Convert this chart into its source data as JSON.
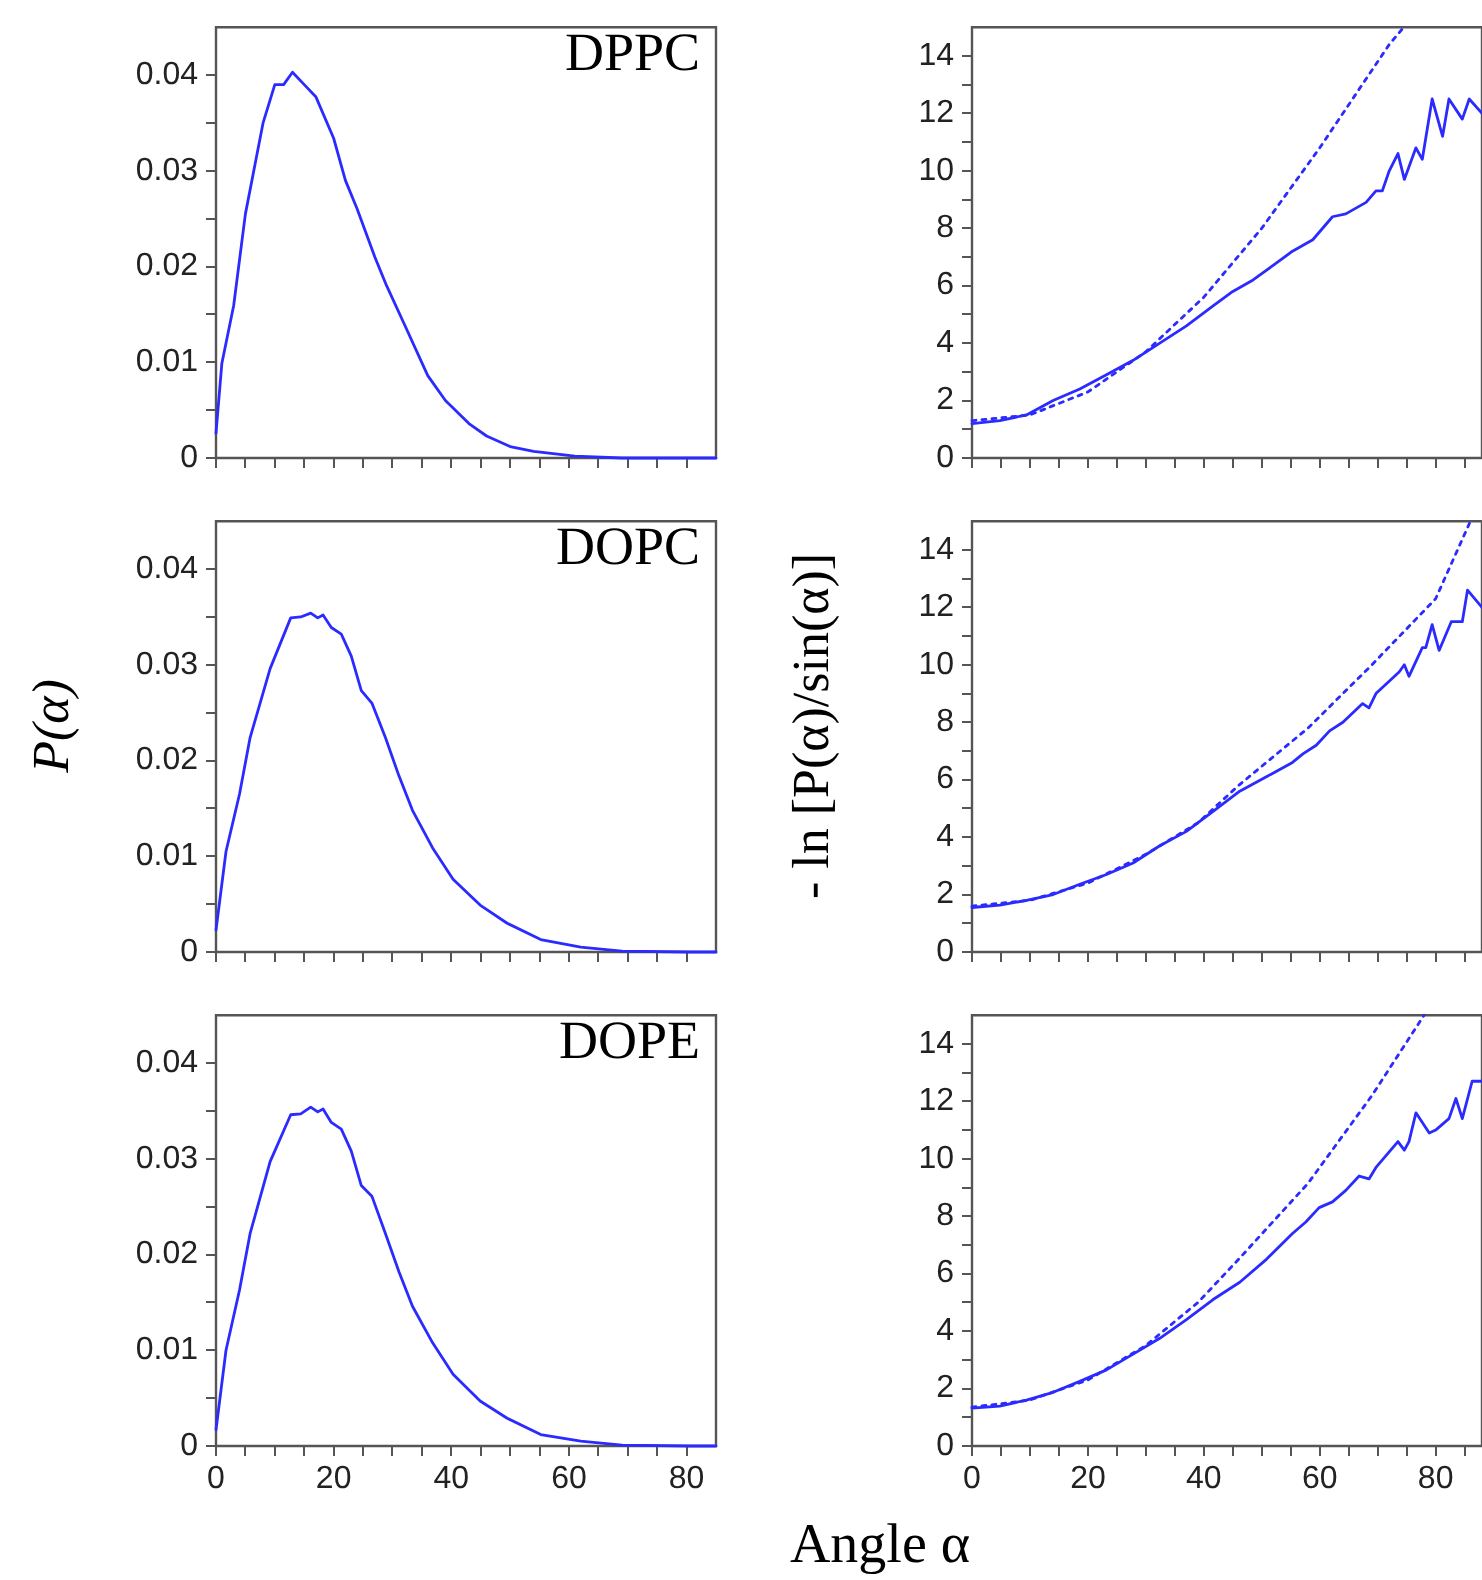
{
  "chart_data": [
    {
      "type": "line",
      "annotations": [
        "DPPC"
      ],
      "xlim": [
        0,
        85
      ],
      "ylim": [
        0,
        0.045
      ],
      "tick_labels": "y",
      "grid": false,
      "legend": false,
      "marker": "none",
      "xticks": [
        0,
        {
          "value": 5,
          "label": null
        },
        {
          "value": 10,
          "label": null
        },
        {
          "value": 15,
          "label": null
        },
        {
          "value": 20,
          "label": null
        },
        {
          "value": 25,
          "label": null
        },
        {
          "value": 30,
          "label": null
        },
        {
          "value": 35,
          "label": null
        },
        {
          "value": 40,
          "label": null
        },
        {
          "value": 45,
          "label": null
        },
        {
          "value": 50,
          "label": null
        },
        {
          "value": 55,
          "label": null
        },
        {
          "value": 60,
          "label": null
        },
        {
          "value": 65,
          "label": null
        },
        {
          "value": 70,
          "label": null
        },
        {
          "value": 75,
          "label": null
        },
        {
          "value": 80,
          "label": null
        }
      ],
      "yticks": [
        0,
        {
          "value": 0.005,
          "label": null
        },
        0.01,
        {
          "value": 0.015,
          "label": null
        },
        0.02,
        {
          "value": 0.025,
          "label": null
        },
        0.03,
        {
          "value": 0.035,
          "label": null
        },
        0.04
      ],
      "series": [
        {
          "color": "#2b2bff",
          "line_style": "solid",
          "x": [
            0,
            1,
            3,
            5,
            8,
            10,
            11.5,
            13,
            15,
            17,
            20,
            22,
            24,
            27,
            29,
            32,
            36,
            39,
            43,
            46,
            50,
            54,
            61,
            69,
            80,
            85
          ],
          "values": [
            0.0026,
            0.0099,
            0.0159,
            0.0255,
            0.035,
            0.039,
            0.039,
            0.0403,
            0.039,
            0.0377,
            0.0334,
            0.029,
            0.026,
            0.021,
            0.018,
            0.014,
            0.0086,
            0.006,
            0.0036,
            0.0023,
            0.0012,
            0.0007,
            0.0002,
            0,
            0,
            0
          ]
        }
      ]
    },
    {
      "type": "line",
      "xlim": [
        0,
        88
      ],
      "ylim": [
        0,
        15
      ],
      "tick_labels": "y",
      "grid": false,
      "legend": false,
      "marker": "none",
      "xticks": [
        0,
        {
          "value": 5,
          "label": null
        },
        20,
        {
          "value": 10,
          "label": null
        },
        {
          "value": 15,
          "label": null
        },
        {
          "value": 25,
          "label": null
        },
        {
          "value": 30,
          "label": null
        },
        {
          "value": 35,
          "label": null
        },
        40,
        {
          "value": 45,
          "label": null
        },
        {
          "value": 50,
          "label": null
        },
        {
          "value": 55,
          "label": null
        },
        60,
        {
          "value": 65,
          "label": null
        },
        {
          "value": 70,
          "label": null
        },
        {
          "value": 75,
          "label": null
        },
        80,
        {
          "value": 85,
          "label": null
        }
      ],
      "yticks": [
        0,
        {
          "value": 1,
          "label": null
        },
        2,
        {
          "value": 3,
          "label": null
        },
        4,
        {
          "value": 5,
          "label": null
        },
        6,
        {
          "value": 7,
          "label": null
        },
        8,
        {
          "value": 9,
          "label": null
        },
        10,
        {
          "value": 11,
          "label": null
        },
        12,
        {
          "value": 13,
          "label": null
        },
        14
      ],
      "series": [
        {
          "color": "#2b2bff",
          "line_style": "solid",
          "x": [
            0,
            4.8,
            9.4,
            14,
            18.6,
            23.2,
            27.8,
            32.4,
            37,
            41.6,
            45,
            48.5,
            51.9,
            55.3,
            58.8,
            60.5,
            62.2,
            64.5,
            68,
            69.7,
            70.8,
            72,
            73.5,
            74.6,
            76.6,
            77.7,
            79.4,
            81.2,
            82.3,
            84.6,
            85.8,
            88
          ],
          "values": [
            1.2,
            1.3,
            1.5,
            2.0,
            2.4,
            2.9,
            3.4,
            4.0,
            4.6,
            5.3,
            5.8,
            6.2,
            6.7,
            7.2,
            7.6,
            8.0,
            8.4,
            8.5,
            8.9,
            9.3,
            9.3,
            10.0,
            10.6,
            9.7,
            10.8,
            10.4,
            12.5,
            11.2,
            12.5,
            11.8,
            12.5,
            12.0
          ]
        },
        {
          "type": "line",
          "color": "#2b2bff",
          "line_style": "dotted",
          "x": [
            0,
            10,
            20,
            30,
            40,
            50,
            60,
            66,
            72,
            74.5
          ],
          "values": [
            1.3,
            1.5,
            2.3,
            3.7,
            5.6,
            8.0,
            10.8,
            12.6,
            14.4,
            15
          ]
        }
      ]
    },
    {
      "type": "line",
      "annotations": [
        "DOPC"
      ],
      "ylabel": "P(α)",
      "xlim": [
        0,
        85
      ],
      "ylim": [
        0,
        0.045
      ],
      "tick_labels": "y",
      "grid": false,
      "legend": false,
      "marker": "none",
      "xticks": [
        0,
        {
          "value": 5,
          "label": null
        },
        {
          "value": 10,
          "label": null
        },
        {
          "value": 15,
          "label": null
        },
        {
          "value": 20,
          "label": null
        },
        {
          "value": 25,
          "label": null
        },
        {
          "value": 30,
          "label": null
        },
        {
          "value": 35,
          "label": null
        },
        {
          "value": 40,
          "label": null
        },
        {
          "value": 45,
          "label": null
        },
        {
          "value": 50,
          "label": null
        },
        {
          "value": 55,
          "label": null
        },
        {
          "value": 60,
          "label": null
        },
        {
          "value": 65,
          "label": null
        },
        {
          "value": 70,
          "label": null
        },
        {
          "value": 75,
          "label": null
        },
        {
          "value": 80,
          "label": null
        }
      ],
      "yticks": [
        0,
        {
          "value": 0.005,
          "label": null
        },
        0.01,
        {
          "value": 0.015,
          "label": null
        },
        0.02,
        {
          "value": 0.025,
          "label": null
        },
        0.03,
        {
          "value": 0.035,
          "label": null
        },
        0.04
      ],
      "series": [
        {
          "color": "#2b2bff",
          "line_style": "solid",
          "x": [
            0,
            1.7,
            4,
            5.8,
            9.2,
            12.7,
            14.4,
            16.1,
            17.3,
            18.2,
            19.6,
            21.3,
            23,
            24.7,
            26.5,
            28.8,
            31.1,
            33.4,
            36.8,
            40.3,
            44.9,
            49.5,
            55.2,
            62,
            69,
            80.5,
            85
          ],
          "values": [
            0.0023,
            0.0105,
            0.0165,
            0.0224,
            0.0296,
            0.0349,
            0.035,
            0.0354,
            0.0349,
            0.0352,
            0.0339,
            0.0332,
            0.0309,
            0.0273,
            0.026,
            0.0224,
            0.0184,
            0.0148,
            0.0109,
            0.0076,
            0.0049,
            0.003,
            0.0013,
            0.0005,
            0.0001,
            0,
            0
          ]
        }
      ]
    },
    {
      "type": "line",
      "ylabel": "- ln [P(α)/sin(α)]",
      "xlim": [
        0,
        88
      ],
      "ylim": [
        0,
        15
      ],
      "tick_labels": "y",
      "grid": false,
      "legend": false,
      "marker": "none",
      "xticks": [
        0,
        {
          "value": 5,
          "label": null
        },
        20,
        {
          "value": 10,
          "label": null
        },
        {
          "value": 15,
          "label": null
        },
        {
          "value": 25,
          "label": null
        },
        {
          "value": 30,
          "label": null
        },
        {
          "value": 35,
          "label": null
        },
        40,
        {
          "value": 45,
          "label": null
        },
        {
          "value": 50,
          "label": null
        },
        {
          "value": 55,
          "label": null
        },
        60,
        {
          "value": 65,
          "label": null
        },
        {
          "value": 70,
          "label": null
        },
        {
          "value": 75,
          "label": null
        },
        80,
        {
          "value": 85,
          "label": null
        }
      ],
      "yticks": [
        0,
        {
          "value": 1,
          "label": null
        },
        2,
        {
          "value": 3,
          "label": null
        },
        4,
        {
          "value": 5,
          "label": null
        },
        6,
        {
          "value": 7,
          "label": null
        },
        8,
        {
          "value": 9,
          "label": null
        },
        10,
        {
          "value": 11,
          "label": null
        },
        12,
        {
          "value": 13,
          "label": null
        },
        14
      ],
      "series": [
        {
          "color": "#2b2bff",
          "line_style": "solid",
          "x": [
            0,
            4.8,
            9.4,
            14,
            18.6,
            23.2,
            27.8,
            32.4,
            37,
            41.6,
            46.2,
            50.8,
            55.3,
            57.1,
            59.4,
            61.7,
            64,
            67.4,
            68.5,
            69.7,
            73.7,
            74.6,
            75.4,
            77.7,
            78.3,
            79.4,
            80.6,
            82.7,
            84.6,
            85.5,
            88
          ],
          "values": [
            1.55,
            1.63,
            1.8,
            2.0,
            2.36,
            2.7,
            3.1,
            3.7,
            4.2,
            4.9,
            5.6,
            6.1,
            6.6,
            6.9,
            7.2,
            7.7,
            8.0,
            8.65,
            8.5,
            9.0,
            9.75,
            10.0,
            9.6,
            10.6,
            10.6,
            11.4,
            10.5,
            11.5,
            11.5,
            12.6,
            12.0
          ]
        },
        {
          "type": "line",
          "color": "#2b2bff",
          "line_style": "dotted",
          "x": [
            0,
            10,
            20,
            30,
            39,
            46,
            58,
            69,
            80,
            86
          ],
          "values": [
            1.6,
            1.8,
            2.4,
            3.4,
            4.5,
            5.8,
            7.8,
            10,
            12.3,
            15
          ]
        }
      ]
    },
    {
      "type": "line",
      "annotations": [
        "DOPE"
      ],
      "xlim": [
        0,
        85
      ],
      "ylim": [
        0,
        0.045
      ],
      "grid": false,
      "legend": false,
      "marker": "none",
      "xticks": [
        0,
        {
          "value": 5,
          "label": null
        },
        {
          "value": 10,
          "label": null
        },
        {
          "value": 15,
          "label": null
        },
        20,
        {
          "value": 25,
          "label": null
        },
        {
          "value": 30,
          "label": null
        },
        {
          "value": 35,
          "label": null
        },
        40,
        {
          "value": 45,
          "label": null
        },
        {
          "value": 50,
          "label": null
        },
        {
          "value": 55,
          "label": null
        },
        60,
        {
          "value": 65,
          "label": null
        },
        {
          "value": 70,
          "label": null
        },
        {
          "value": 75,
          "label": null
        },
        80
      ],
      "yticks": [
        0,
        {
          "value": 0.005,
          "label": null
        },
        0.01,
        {
          "value": 0.015,
          "label": null
        },
        0.02,
        {
          "value": 0.025,
          "label": null
        },
        0.03,
        {
          "value": 0.035,
          "label": null
        },
        0.04
      ],
      "series": [
        {
          "color": "#2b2bff",
          "line_style": "solid",
          "x": [
            0,
            1.7,
            4,
            5.8,
            9.2,
            12.7,
            14.4,
            16.1,
            17.3,
            18.2,
            19.6,
            21.3,
            23,
            24.7,
            26.5,
            28.8,
            31.1,
            33.4,
            36.8,
            40.3,
            44.9,
            49.5,
            55.2,
            62,
            69,
            80.5,
            85
          ],
          "values": [
            0.0017,
            0.01,
            0.0163,
            0.0222,
            0.0297,
            0.0346,
            0.0347,
            0.0354,
            0.0349,
            0.0352,
            0.0338,
            0.0331,
            0.0308,
            0.0272,
            0.0261,
            0.0222,
            0.0182,
            0.0146,
            0.0108,
            0.0075,
            0.0047,
            0.0029,
            0.0012,
            0.0005,
            0.0001,
            0,
            0
          ]
        }
      ]
    },
    {
      "type": "line",
      "xlabel": "Angle α",
      "xlim": [
        0,
        88
      ],
      "ylim": [
        0,
        15
      ],
      "grid": false,
      "legend": false,
      "marker": "none",
      "xticks": [
        0,
        {
          "value": 5,
          "label": null
        },
        20,
        {
          "value": 10,
          "label": null
        },
        {
          "value": 15,
          "label": null
        },
        {
          "value": 25,
          "label": null
        },
        {
          "value": 30,
          "label": null
        },
        {
          "value": 35,
          "label": null
        },
        40,
        {
          "value": 45,
          "label": null
        },
        {
          "value": 50,
          "label": null
        },
        {
          "value": 55,
          "label": null
        },
        60,
        {
          "value": 65,
          "label": null
        },
        {
          "value": 70,
          "label": null
        },
        {
          "value": 75,
          "label": null
        },
        80,
        {
          "value": 85,
          "label": null
        }
      ],
      "yticks": [
        0,
        {
          "value": 1,
          "label": null
        },
        2,
        {
          "value": 3,
          "label": null
        },
        4,
        {
          "value": 5,
          "label": null
        },
        6,
        {
          "value": 7,
          "label": null
        },
        8,
        {
          "value": 9,
          "label": null
        },
        10,
        {
          "value": 11,
          "label": null
        },
        12,
        {
          "value": 13,
          "label": null
        },
        14
      ],
      "series": [
        {
          "color": "#2b2bff",
          "line_style": "solid",
          "x": [
            0,
            4.8,
            9.4,
            14,
            18.6,
            23.2,
            27.8,
            32.4,
            37,
            41.6,
            46.2,
            50.8,
            55.3,
            57.6,
            59.9,
            62.2,
            64.5,
            66.8,
            68.5,
            69.7,
            71.4,
            73.5,
            74.6,
            75.4,
            76.6,
            78.9,
            80,
            82.3,
            83.5,
            84.6,
            86.3,
            88
          ],
          "values": [
            1.32,
            1.39,
            1.6,
            1.87,
            2.25,
            2.65,
            3.2,
            3.75,
            4.4,
            5.1,
            5.7,
            6.5,
            7.4,
            7.8,
            8.3,
            8.5,
            8.9,
            9.4,
            9.3,
            9.7,
            10.1,
            10.6,
            10.3,
            10.6,
            11.6,
            10.9,
            11.0,
            11.4,
            12.1,
            11.4,
            12.7,
            12.7
          ]
        },
        {
          "type": "line",
          "color": "#2b2bff",
          "line_style": "dotted",
          "x": [
            0,
            10,
            20,
            30,
            39,
            46,
            58,
            69,
            78
          ],
          "values": [
            1.35,
            1.6,
            2.3,
            3.5,
            5.0,
            6.5,
            9.15,
            12.2,
            15
          ]
        }
      ]
    }
  ]
}
